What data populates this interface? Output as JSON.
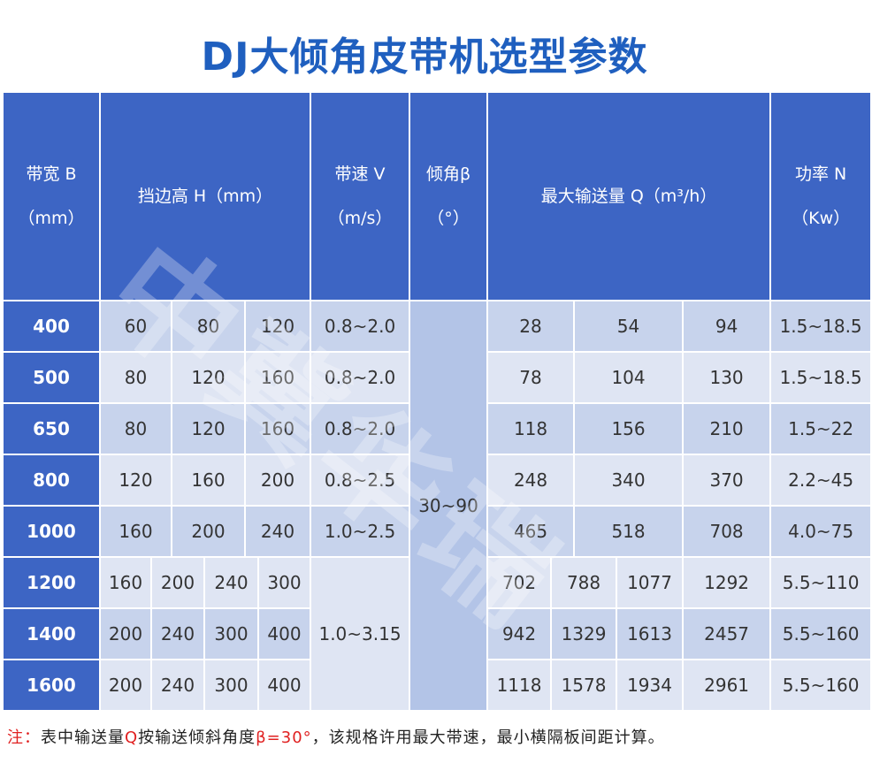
{
  "title": "DJ大倾角皮带机选型参数",
  "headers": {
    "width": "带宽 B",
    "width_unit": "（mm）",
    "height": "挡边高 H（mm）",
    "speed": "带速 V",
    "speed_unit": "（m/s）",
    "angle": "倾角β",
    "angle_unit": "（°）",
    "capacity": "最大输送量 Q（m³/h）",
    "power": "功率 N",
    "power_unit": "（Kw）"
  },
  "angle_value": "30~90",
  "rows": [
    {
      "width": "400",
      "h": [
        "60",
        "80",
        "120"
      ],
      "v": "0.8~2.0",
      "q": [
        "28",
        "54",
        "94"
      ],
      "n": "1.5~18.5"
    },
    {
      "width": "500",
      "h": [
        "80",
        "120",
        "160"
      ],
      "v": "0.8~2.0",
      "q": [
        "78",
        "104",
        "130"
      ],
      "n": "1.5~18.5"
    },
    {
      "width": "650",
      "h": [
        "80",
        "120",
        "160"
      ],
      "v": "0.8~2.0",
      "q": [
        "118",
        "156",
        "210"
      ],
      "n": "1.5~22"
    },
    {
      "width": "800",
      "h": [
        "120",
        "160",
        "200"
      ],
      "v": "0.8~2.5",
      "q": [
        "248",
        "340",
        "370"
      ],
      "n": "2.2~45"
    },
    {
      "width": "1000",
      "h": [
        "160",
        "200",
        "240"
      ],
      "v": "1.0~2.5",
      "q": [
        "465",
        "518",
        "708"
      ],
      "n": "4.0~75"
    },
    {
      "width": "1200",
      "h": [
        "160",
        "200",
        "240",
        "300"
      ],
      "q": [
        "702",
        "788",
        "1077",
        "1292"
      ],
      "n": "5.5~110"
    },
    {
      "width": "1400",
      "h": [
        "200",
        "240",
        "300",
        "400"
      ],
      "q": [
        "942",
        "1329",
        "1613",
        "2457"
      ],
      "n": "5.5~160"
    },
    {
      "width": "1600",
      "h": [
        "200",
        "240",
        "300",
        "400"
      ],
      "q": [
        "1118",
        "1578",
        "1934",
        "2961"
      ],
      "n": "5.5~160"
    }
  ],
  "speed_large": "1.0~3.15",
  "note": {
    "prefix": "注：",
    "text1": "表中输送量",
    "q": "Q",
    "text2": "按输送倾斜角度",
    "beta": "β=30°",
    "text3": "，该规格许用最大带速，最小横隔板间距计算。"
  },
  "watermark": "中冀华瑞",
  "colors": {
    "header": "#3d65c4",
    "title": "#1f5fbf",
    "note_red": "#e02020"
  }
}
